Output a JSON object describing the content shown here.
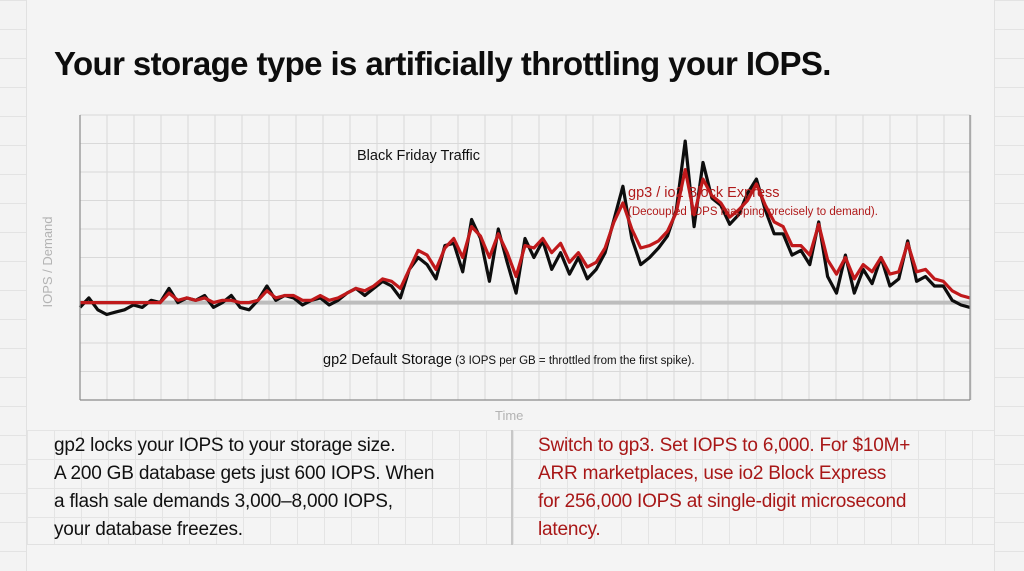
{
  "title": "Your storage type is artificially throttling your IOPS.",
  "chart": {
    "ylabel": "IOPS / Demand",
    "xlabel": "Time",
    "annotations": {
      "black_friday": "Black Friday Traffic",
      "gp3_title": "gp3 / io2 Block Express",
      "gp3_sub": "(Decoupled IOPS mapping precisely to demand).",
      "gp2_main": "gp2 Default Storage",
      "gp2_sub": " (3 IOPS per GB = throttled from the first spike)."
    },
    "colors": {
      "demand": "#0d0d0d",
      "gp3": "#c0191b",
      "gp2_cap": "#bdbdbd",
      "grid": "#d9d9d9",
      "axis": "#8a8a8a"
    }
  },
  "chart_data": {
    "type": "line",
    "title": "Your storage type is artificially throttling your IOPS.",
    "xlabel": "Time",
    "ylabel": "IOPS / Demand",
    "grid": true,
    "legend": "inline annotations",
    "ylim": [
      0,
      100
    ],
    "x": [
      0,
      1,
      2,
      3,
      4,
      5,
      6,
      7,
      8,
      9,
      10,
      11,
      12,
      13,
      14,
      15,
      16,
      17,
      18,
      19,
      20,
      21,
      22,
      23,
      24,
      25,
      26,
      27,
      28,
      29,
      30,
      31,
      32,
      33,
      34,
      35,
      36,
      37,
      38,
      39,
      40,
      41,
      42,
      43,
      44,
      45,
      46,
      47,
      48,
      49,
      50,
      51,
      52,
      53,
      54,
      55,
      56,
      57,
      58,
      59,
      60,
      61,
      62,
      63,
      64,
      65,
      66,
      67,
      68,
      69,
      70,
      71,
      72,
      73,
      74,
      75,
      76,
      77,
      78,
      79,
      80,
      81,
      82,
      83,
      84,
      85,
      86,
      87,
      88,
      89,
      90,
      91,
      92,
      93,
      94,
      95,
      96,
      97,
      98,
      99,
      100
    ],
    "series": [
      {
        "name": "Black Friday Traffic (demand)",
        "values": [
          19,
          23,
          18,
          16,
          17,
          18,
          20,
          19,
          22,
          21,
          27,
          21,
          23,
          22,
          24,
          19,
          21,
          24,
          19,
          18,
          22,
          28,
          22,
          24,
          23,
          20,
          22,
          23,
          20,
          22,
          25,
          27,
          24,
          27,
          30,
          28,
          23,
          35,
          40,
          37,
          31,
          45,
          46,
          34,
          56,
          48,
          30,
          52,
          38,
          25,
          48,
          40,
          47,
          35,
          42,
          33,
          40,
          31,
          35,
          42,
          56,
          70,
          48,
          37,
          40,
          44,
          49,
          60,
          89,
          53,
          80,
          65,
          62,
          54,
          58,
          67,
          73,
          60,
          50,
          50,
          41,
          43,
          37,
          55,
          32,
          25,
          41,
          25,
          35,
          29,
          40,
          28,
          31,
          47,
          30,
          32,
          28,
          28,
          22,
          20,
          19
        ]
      },
      {
        "name": "gp3 / io2 Block Express",
        "values": [
          21,
          21,
          21,
          21,
          21,
          21,
          21,
          21,
          21,
          21,
          25,
          22,
          23,
          22,
          23,
          21,
          22,
          22,
          21,
          21,
          22,
          26,
          23,
          24,
          24,
          22,
          22,
          24,
          22,
          23,
          25,
          27,
          26,
          28,
          31,
          30,
          27,
          35,
          43,
          41,
          35,
          44,
          48,
          40,
          53,
          49,
          40,
          50,
          42,
          32,
          45,
          44,
          48,
          42,
          46,
          38,
          42,
          36,
          38,
          44,
          55,
          63,
          52,
          44,
          45,
          47,
          51,
          59,
          77,
          58,
          73,
          66,
          63,
          57,
          60,
          64,
          71,
          62,
          55,
          53,
          45,
          45,
          41,
          54,
          39,
          33,
          40,
          31,
          37,
          34,
          40,
          33,
          34,
          46,
          34,
          35,
          31,
          30,
          26,
          24,
          23
        ]
      },
      {
        "name": "gp2 Default Storage (3 IOPS per GB cap)",
        "values": [
          21,
          21,
          21,
          21,
          21,
          21,
          21,
          21,
          21,
          21,
          21,
          21,
          21,
          21,
          21,
          21,
          21,
          21,
          21,
          21,
          21,
          21,
          21,
          21,
          21,
          21,
          21,
          21,
          21,
          21,
          21,
          21,
          21,
          21,
          21,
          21,
          21,
          21,
          21,
          21,
          21,
          21,
          21,
          21,
          21,
          21,
          21,
          21,
          21,
          21,
          21,
          21,
          21,
          21,
          21,
          21,
          21,
          21,
          21,
          21,
          21,
          21,
          21,
          21,
          21,
          21,
          21,
          21,
          21,
          21,
          21,
          21,
          21,
          21,
          21,
          21,
          21,
          21,
          21,
          21,
          21,
          21,
          21,
          21,
          21,
          21,
          21,
          21,
          21,
          21,
          21,
          21,
          21,
          21,
          21,
          21,
          21,
          21,
          21,
          21,
          21
        ]
      }
    ]
  },
  "bottom": {
    "left_lines": [
      "gp2 locks your IOPS to your storage size.",
      "A 200 GB database gets just 600 IOPS. When",
      "a flash sale demands 3,000–8,000 IOPS,",
      "your database freezes."
    ],
    "right_lines": [
      "Switch to gp3. Set IOPS to 6,000. For $10M+",
      "ARR marketplaces, use io2 Block Express",
      "for 256,000 IOPS at single-digit microsecond",
      "latency."
    ]
  }
}
